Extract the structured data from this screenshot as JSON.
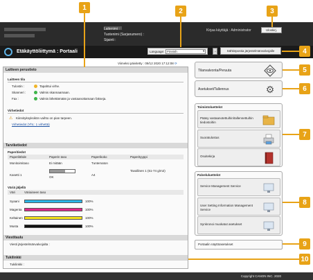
{
  "header": {
    "device_name_label": "Laitenimi :",
    "product_name_label": "Tuotenimi (Sarjanumero) :",
    "location_label": "Sijainti :",
    "user_label": "Kirjaa käyttäjä :",
    "user_name": "Administrator",
    "logout_label": "Uloskirj."
  },
  "brand": {
    "title": "Etäkäyttöliittymä : Portaali"
  },
  "language": {
    "label": "Language:",
    "value": "Finnish"
  },
  "mail_button": "Sähköpostia järjestelmänvalvojalle",
  "updated": "Viimeksi päivitetty : 09/12 2020 17:12:08",
  "device_info": {
    "title": "Laitteen perustieto",
    "status_heading": "Laitteen tila",
    "printer_label": "Tulostin :",
    "printer_status": "Tapahtui virhe.",
    "scanner_label": "Skanneri :",
    "scanner_status": "Valmis skannaamaan.",
    "fax_label": "Fax :",
    "fax_status": "Valmis lähettämään ja vastaanottamaan fakseja.",
    "errors_heading": "Virhetiedot",
    "error_text": "Kiinnityksyksikön vaihto on pian tarpeen.",
    "error_link": "Virhetiedot (Yht.: 1 virhettä)"
  },
  "consumables": {
    "title": "Tarviketiedot",
    "paper_heading": "Paperitiedot",
    "columns": [
      "Paperilähde",
      "Paperin taso",
      "Paperikoko",
      "Paperityyppi"
    ],
    "rows": [
      [
        "Monitoimitaso",
        "Ei mitään",
        "Tuntematon",
        ""
      ],
      [
        "Kasetti 1",
        "OK",
        "A4",
        "Tavallinen 1 (61-74 g/m2)"
      ]
    ],
    "cassette_level": 0.6,
    "toner_heading": "Väriä jäljellä",
    "toner_columns": [
      "Väri",
      "Väriaineen taso"
    ],
    "toner": [
      {
        "name": "Syaani",
        "level": "100%",
        "color": "#29b6e8"
      },
      {
        "name": "Magenta",
        "level": "100%",
        "color": "#e0278a"
      },
      {
        "name": "Keltainen",
        "level": "100%",
        "color": "#f4e21a"
      },
      {
        "name": "Musta",
        "level": "100%",
        "color": "#111111"
      }
    ]
  },
  "messages": {
    "title": "Viestitaulu",
    "text": "Viesti järjestelmänvalvojalta :"
  },
  "support": {
    "title": "Tukilinkki",
    "text": "Tukilinkki :"
  },
  "right": {
    "status_monitor": "Tilanvalvonta/Peruuta",
    "settings": "Asetukset/Tallennus",
    "functions_heading": "Toimintoluettelot",
    "functions": [
      {
        "label": "Pääsy vastaanotettuihin/tallennettuihin tiedostoihin",
        "icon": "folder-icon"
      },
      {
        "label": "Suoratulostus",
        "icon": "printer-icon"
      },
      {
        "label": "Osoitekirja",
        "icon": "address-book-icon"
      }
    ],
    "services_heading": "Palveluluettelot",
    "services": [
      {
        "label": "Service Management Service",
        "icon": "monitor-icon"
      },
      {
        "label": "User Setting Information Management Service",
        "icon": "monitor-icon"
      },
      {
        "label": "Synkronoi muokatut asetukset",
        "icon": "monitor-icon"
      }
    ],
    "portal_settings": "Portaalin näyttöasetukset"
  },
  "footer": {
    "copyright": "Copyright CANON INC. 2020"
  },
  "callouts": [
    "1",
    "2",
    "3",
    "4",
    "5",
    "6",
    "7",
    "8",
    "9",
    "10"
  ]
}
